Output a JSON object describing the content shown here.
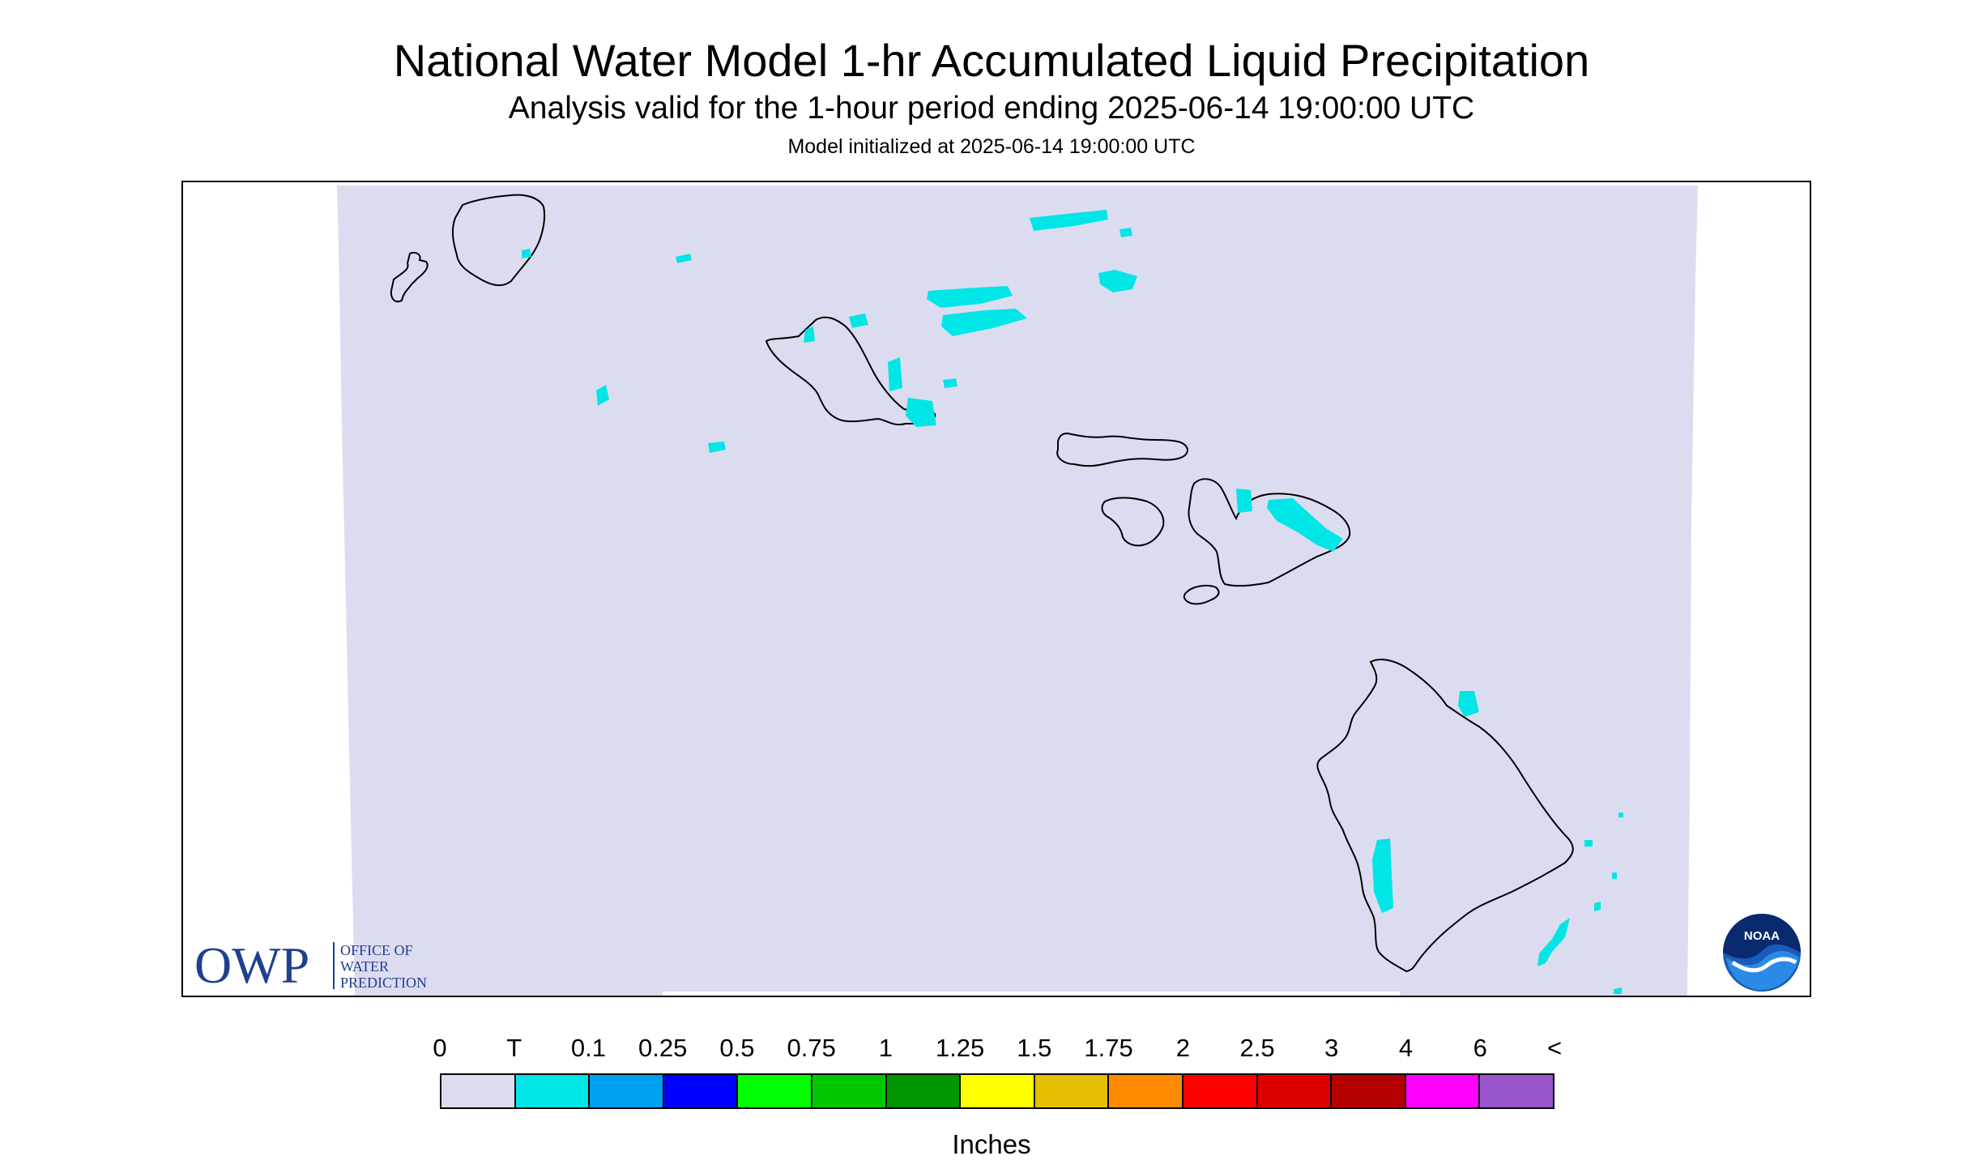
{
  "header": {
    "title": "National Water Model 1-hr Accumulated Liquid Precipitation",
    "subtitle": "Analysis valid for the 1-hour period ending 2025-06-14 19:00:00 UTC",
    "init_text": "Model initialized at 2025-06-14 19:00:00 UTC"
  },
  "map": {
    "domain_fill": "#dcdcf0",
    "precip_color": "#00e6e6",
    "coast_color": "#000000"
  },
  "branding": {
    "owp_abbrev": "OWP",
    "owp_line1": "OFFICE OF",
    "owp_line2": "WATER",
    "owp_line3": "PREDICTION",
    "owp_color": "#1f3f8f",
    "noaa_text": "NOAA"
  },
  "legend": {
    "labels": [
      "0",
      "T",
      "0.1",
      "0.25",
      "0.5",
      "0.75",
      "1",
      "1.25",
      "1.5",
      "1.75",
      "2",
      "2.5",
      "3",
      "4",
      "6",
      "<"
    ],
    "colors": [
      "#dcdcf0",
      "#00e6e6",
      "#00a0f0",
      "#0000ff",
      "#00ff00",
      "#00c800",
      "#009600",
      "#ffff00",
      "#e6be00",
      "#ff8c00",
      "#ff0000",
      "#dc0000",
      "#b40000",
      "#ff00ff",
      "#9955cc"
    ],
    "unit": "Inches"
  }
}
